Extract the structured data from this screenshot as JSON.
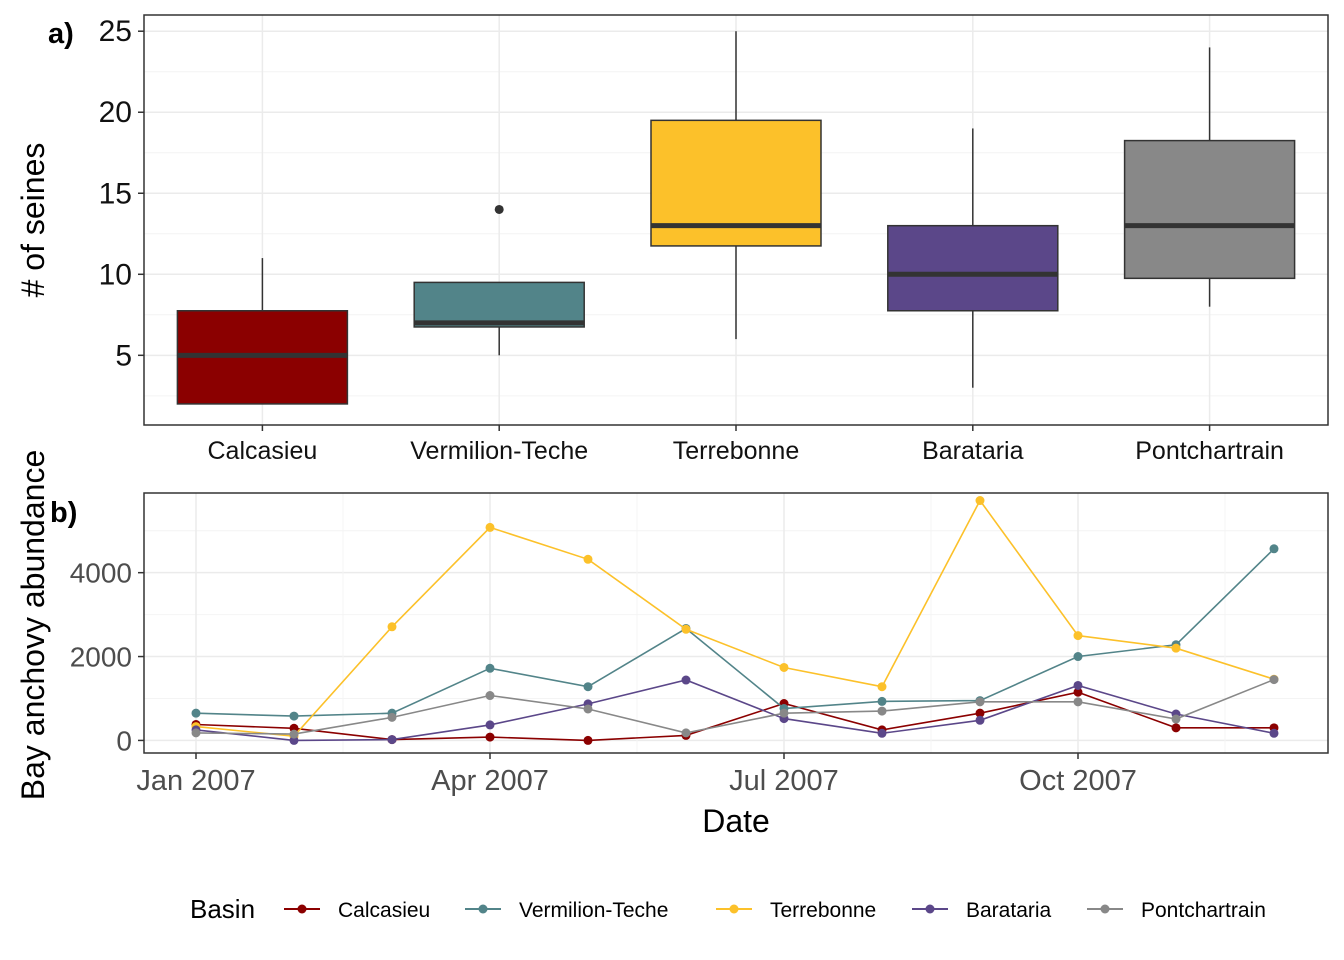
{
  "colors": {
    "Calcasieu": "#8b0000",
    "Vermilion-Teche": "#528489",
    "Terrebonne": "#fcc12a",
    "Barataria": "#5b4789",
    "Pontchartrain": "#888888",
    "box_border": "#333333",
    "grid_major": "#ebebeb",
    "grid_minor": "#f4f4f4"
  },
  "chart_data": [
    {
      "panel_label": "a)",
      "type": "box",
      "title": "",
      "xlabel": "",
      "ylabel": "# of seines",
      "ylim": [
        0.7,
        26
      ],
      "yticks": [
        5,
        10,
        15,
        20,
        25
      ],
      "grid": true,
      "categories": [
        "Calcasieu",
        "Vermilion-Teche",
        "Terrebonne",
        "Barataria",
        "Pontchartrain"
      ],
      "boxes": [
        {
          "name": "Calcasieu",
          "min": 2,
          "q1": 2,
          "median": 5,
          "q3": 7.75,
          "max": 11,
          "outliers": []
        },
        {
          "name": "Vermilion-Teche",
          "min": 5,
          "q1": 6.75,
          "median": 7,
          "q3": 9.5,
          "max": 9.5,
          "outliers": [
            14
          ]
        },
        {
          "name": "Terrebonne",
          "min": 6,
          "q1": 11.75,
          "median": 13,
          "q3": 19.5,
          "max": 25,
          "outliers": []
        },
        {
          "name": "Barataria",
          "min": 3,
          "q1": 7.75,
          "median": 10,
          "q3": 13,
          "max": 19,
          "outliers": []
        },
        {
          "name": "Pontchartrain",
          "min": 8,
          "q1": 9.75,
          "median": 13,
          "q3": 18.25,
          "max": 24,
          "outliers": []
        }
      ]
    },
    {
      "panel_label": "b)",
      "type": "line",
      "title": "",
      "xlabel": "Date",
      "ylabel": "Bay anchovy abundance",
      "ylim": [
        -300,
        5900
      ],
      "yticks": [
        0,
        2000,
        4000
      ],
      "xticks": [
        "Jan 2007",
        "Apr 2007",
        "Jul 2007",
        "Oct 2007"
      ],
      "x": [
        "2007-01",
        "2007-02",
        "2007-03",
        "2007-04",
        "2007-05",
        "2007-06",
        "2007-07",
        "2007-08",
        "2007-09",
        "2007-10",
        "2007-11",
        "2007-12"
      ],
      "grid": true,
      "series": [
        {
          "name": "Calcasieu",
          "values": [
            380,
            290,
            20,
            80,
            0,
            120,
            880,
            250,
            650,
            1150,
            300,
            300
          ]
        },
        {
          "name": "Vermilion-Teche",
          "values": [
            650,
            580,
            650,
            1720,
            1280,
            2670,
            760,
            930,
            950,
            2000,
            2280,
            4570
          ]
        },
        {
          "name": "Terrebonne",
          "values": [
            330,
            100,
            2710,
            5080,
            4320,
            2650,
            1740,
            1280,
            5720,
            2500,
            2200,
            1460
          ]
        },
        {
          "name": "Barataria",
          "values": [
            250,
            0,
            20,
            370,
            870,
            1440,
            520,
            170,
            480,
            1310,
            630,
            170
          ]
        },
        {
          "name": "Pontchartrain",
          "values": [
            180,
            150,
            550,
            1070,
            750,
            180,
            650,
            700,
            920,
            920,
            510,
            1450
          ]
        }
      ]
    }
  ],
  "legend": {
    "title": "Basin",
    "position": "bottom",
    "items": [
      "Calcasieu",
      "Vermilion-Teche",
      "Terrebonne",
      "Barataria",
      "Pontchartrain"
    ]
  }
}
